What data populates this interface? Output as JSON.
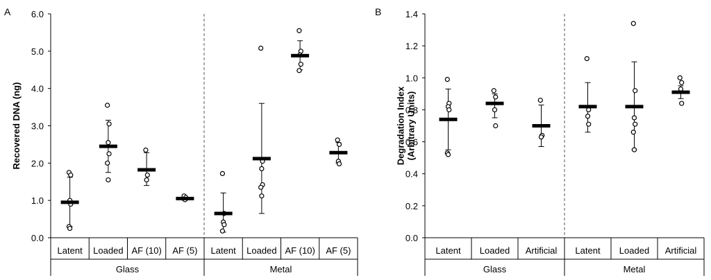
{
  "chart_data": [
    {
      "panel_label": "A",
      "type": "scatter",
      "ylabel": "Recovered DNA (ng)",
      "ylim": [
        0,
        6
      ],
      "yticks": [
        "0.0",
        "1.0",
        "2.0",
        "3.0",
        "4.0",
        "5.0",
        "6.0"
      ],
      "groups": [
        {
          "label": "Glass",
          "categories": [
            {
              "label": "Latent",
              "mean": 0.95,
              "sd_low": 0.3,
              "sd_high": 1.62,
              "points": [
                1.75,
                1.68,
                1.0,
                0.9,
                0.3,
                0.25
              ]
            },
            {
              "label": "Loaded",
              "mean": 2.45,
              "sd_low": 1.75,
              "sd_high": 3.15,
              "points": [
                3.55,
                3.05,
                2.55,
                2.25,
                2.0,
                1.55
              ]
            },
            {
              "label": "AF (10)",
              "mean": 1.82,
              "sd_low": 1.4,
              "sd_high": 2.28,
              "points": [
                2.35,
                1.68,
                1.55
              ]
            },
            {
              "label": "AF (5)",
              "mean": 1.05,
              "sd_low": 1.0,
              "sd_high": 1.1,
              "points": [
                1.12,
                1.08,
                1.02
              ]
            }
          ]
        },
        {
          "label": "Metal",
          "categories": [
            {
              "label": "Latent",
              "mean": 0.65,
              "sd_low": 0.15,
              "sd_high": 1.2,
              "points": [
                1.72,
                0.65,
                0.42,
                0.35,
                0.18
              ]
            },
            {
              "label": "Loaded",
              "mean": 2.12,
              "sd_low": 0.65,
              "sd_high": 3.6,
              "points": [
                5.08,
                2.05,
                1.85,
                1.42,
                1.35,
                1.12
              ]
            },
            {
              "label": "AF (10)",
              "mean": 4.88,
              "sd_low": 4.5,
              "sd_high": 5.28,
              "points": [
                5.55,
                5.0,
                4.9,
                4.65,
                4.48
              ]
            },
            {
              "label": "AF (5)",
              "mean": 2.28,
              "sd_low": 2.0,
              "sd_high": 2.55,
              "points": [
                2.62,
                2.5,
                2.05,
                1.98
              ]
            }
          ]
        }
      ],
      "grid": false
    },
    {
      "panel_label": "B",
      "type": "scatter",
      "ylabel": "Degradation Index (Arbitrary Units)",
      "ylabel_lines": [
        "Degradation Index",
        "(Arbitrary Units)"
      ],
      "ylim": [
        0,
        1.4
      ],
      "yticks": [
        "0.0",
        "0.2",
        "0.4",
        "0.6",
        "0.8",
        "1.0",
        "1.2",
        "1.4"
      ],
      "groups": [
        {
          "label": "Glass",
          "categories": [
            {
              "label": "Latent",
              "mean": 0.74,
              "sd_low": 0.55,
              "sd_high": 0.93,
              "points": [
                0.99,
                0.84,
                0.82,
                0.8,
                0.53,
                0.52
              ]
            },
            {
              "label": "Loaded",
              "mean": 0.84,
              "sd_low": 0.75,
              "sd_high": 0.9,
              "points": [
                0.92,
                0.88,
                0.8,
                0.7
              ]
            },
            {
              "label": "Artificial",
              "mean": 0.7,
              "sd_low": 0.57,
              "sd_high": 0.83,
              "points": [
                0.86,
                0.64,
                0.63
              ]
            }
          ]
        },
        {
          "label": "Metal",
          "categories": [
            {
              "label": "Latent",
              "mean": 0.82,
              "sd_low": 0.66,
              "sd_high": 0.97,
              "points": [
                1.12,
                0.8,
                0.76,
                0.71
              ]
            },
            {
              "label": "Loaded",
              "mean": 0.82,
              "sd_low": 0.55,
              "sd_high": 1.1,
              "points": [
                1.34,
                0.92,
                0.75,
                0.71,
                0.66,
                0.55
              ]
            },
            {
              "label": "Artificial",
              "mean": 0.91,
              "sd_low": 0.87,
              "sd_high": 0.95,
              "points": [
                1.0,
                0.97,
                0.93,
                0.84
              ]
            }
          ]
        }
      ],
      "grid": false
    }
  ]
}
